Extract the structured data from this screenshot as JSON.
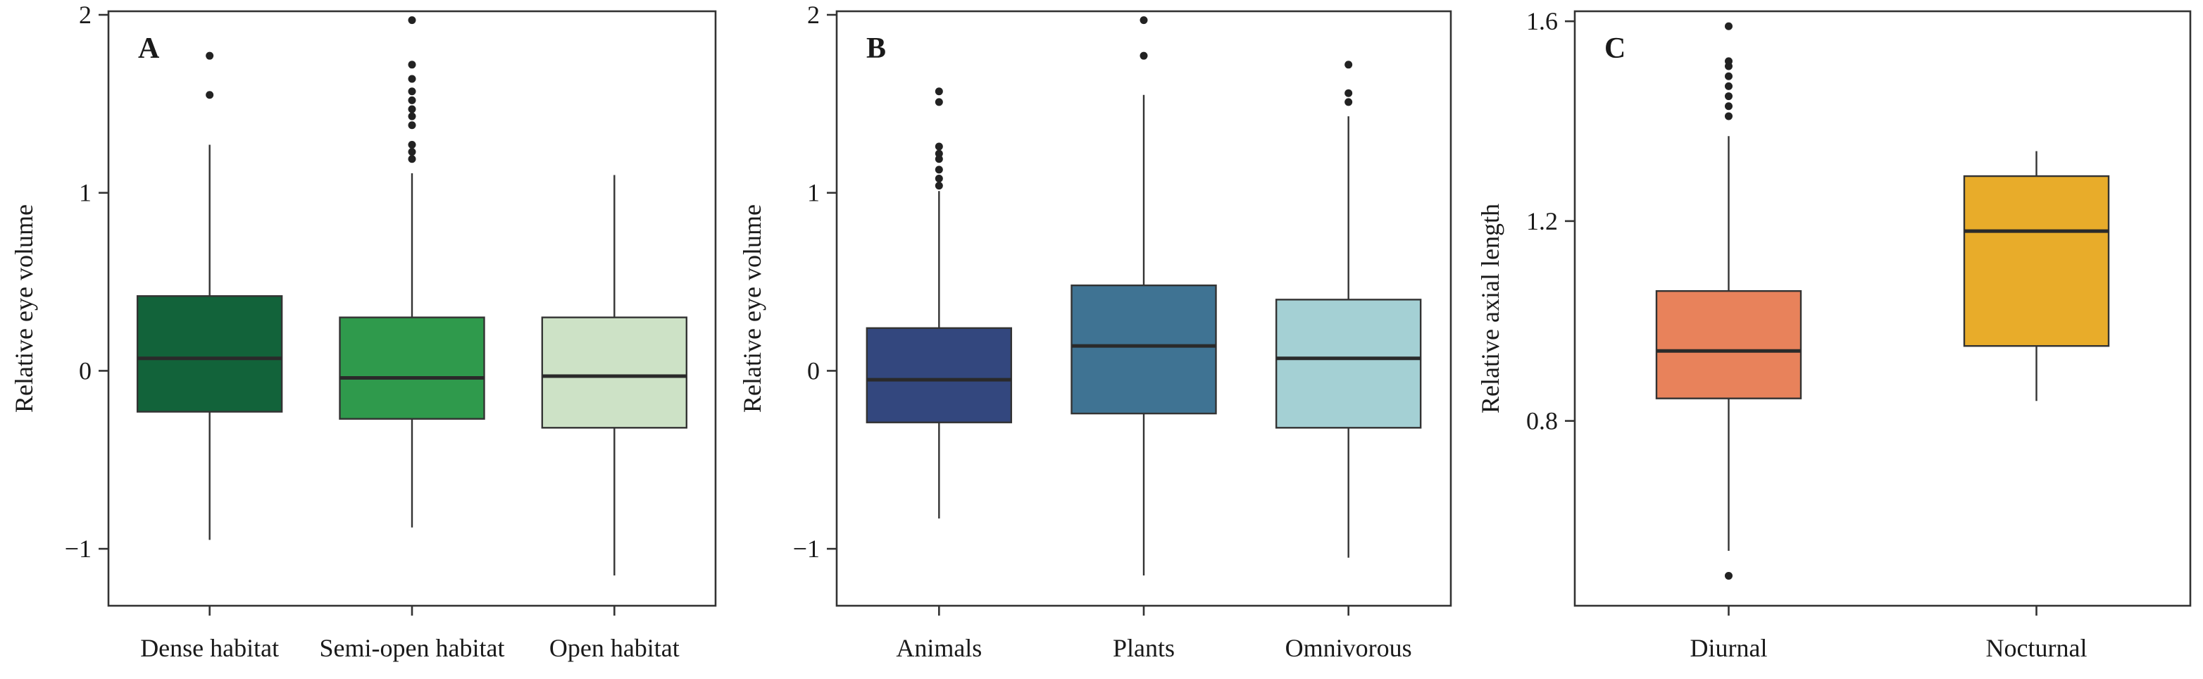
{
  "chart_data": [
    {
      "type": "box",
      "panel_label": "A",
      "ylabel": "Relative eye volume",
      "ylim": [
        -1.32,
        2.02
      ],
      "yticks": [
        {
          "value": -1,
          "label": "−1"
        },
        {
          "value": 0,
          "label": "0"
        },
        {
          "value": 1,
          "label": "1"
        },
        {
          "value": 2,
          "label": "2"
        }
      ],
      "grid": false,
      "categories": [
        "Dense habitat",
        "Semi-open habitat",
        "Open habitat"
      ],
      "boxes": [
        {
          "category": "Dense habitat",
          "color": "#12633a",
          "whisker_low": -0.95,
          "q1": -0.23,
          "median": 0.07,
          "q3": 0.42,
          "whisker_high": 1.27,
          "outliers": [
            1.55,
            1.77
          ]
        },
        {
          "category": "Semi-open habitat",
          "color": "#2f9a4c",
          "whisker_low": -0.88,
          "q1": -0.27,
          "median": -0.04,
          "q3": 0.3,
          "whisker_high": 1.11,
          "outliers": [
            1.19,
            1.23,
            1.27,
            1.38,
            1.43,
            1.47,
            1.52,
            1.57,
            1.64,
            1.72,
            1.97
          ]
        },
        {
          "category": "Open habitat",
          "color": "#cde2c6",
          "whisker_low": -1.15,
          "q1": -0.32,
          "median": -0.03,
          "q3": 0.3,
          "whisker_high": 1.1,
          "outliers": []
        }
      ]
    },
    {
      "type": "box",
      "panel_label": "B",
      "ylabel": "Relative eye volume",
      "ylim": [
        -1.32,
        2.02
      ],
      "yticks": [
        {
          "value": -1,
          "label": "−1"
        },
        {
          "value": 0,
          "label": "0"
        },
        {
          "value": 1,
          "label": "1"
        },
        {
          "value": 2,
          "label": "2"
        }
      ],
      "grid": false,
      "categories": [
        "Animals",
        "Plants",
        "Omnivorous"
      ],
      "boxes": [
        {
          "category": "Animals",
          "color": "#33477e",
          "whisker_low": -0.83,
          "q1": -0.29,
          "median": -0.05,
          "q3": 0.24,
          "whisker_high": 1.01,
          "outliers": [
            1.04,
            1.08,
            1.13,
            1.19,
            1.22,
            1.26,
            1.51,
            1.57
          ]
        },
        {
          "category": "Plants",
          "color": "#3f7393",
          "whisker_low": -1.15,
          "q1": -0.24,
          "median": 0.14,
          "q3": 0.48,
          "whisker_high": 1.55,
          "outliers": [
            1.77,
            1.97
          ]
        },
        {
          "category": "Omnivorous",
          "color": "#a4d0d4",
          "whisker_low": -1.05,
          "q1": -0.32,
          "median": 0.07,
          "q3": 0.4,
          "whisker_high": 1.43,
          "outliers": [
            1.51,
            1.56,
            1.72
          ]
        }
      ]
    },
    {
      "type": "box",
      "panel_label": "C",
      "ylabel": "Relative axial length",
      "ylim": [
        0.43,
        1.62
      ],
      "yticks": [
        {
          "value": 0.8,
          "label": "0.8"
        },
        {
          "value": 1.2,
          "label": "1.2"
        },
        {
          "value": 1.6,
          "label": "1.6"
        }
      ],
      "grid": false,
      "categories": [
        "Diurnal",
        "Nocturnal"
      ],
      "boxes": [
        {
          "category": "Diurnal",
          "color": "#e8825b",
          "whisker_low": 0.54,
          "q1": 0.845,
          "median": 0.94,
          "q3": 1.06,
          "whisker_high": 1.37,
          "outliers": [
            0.49,
            1.41,
            1.43,
            1.45,
            1.47,
            1.49,
            1.51,
            1.52,
            1.59
          ]
        },
        {
          "category": "Nocturnal",
          "color": "#e8ac2a",
          "whisker_low": 0.84,
          "q1": 0.95,
          "median": 1.18,
          "q3": 1.29,
          "whisker_high": 1.34,
          "outliers": []
        }
      ]
    }
  ]
}
